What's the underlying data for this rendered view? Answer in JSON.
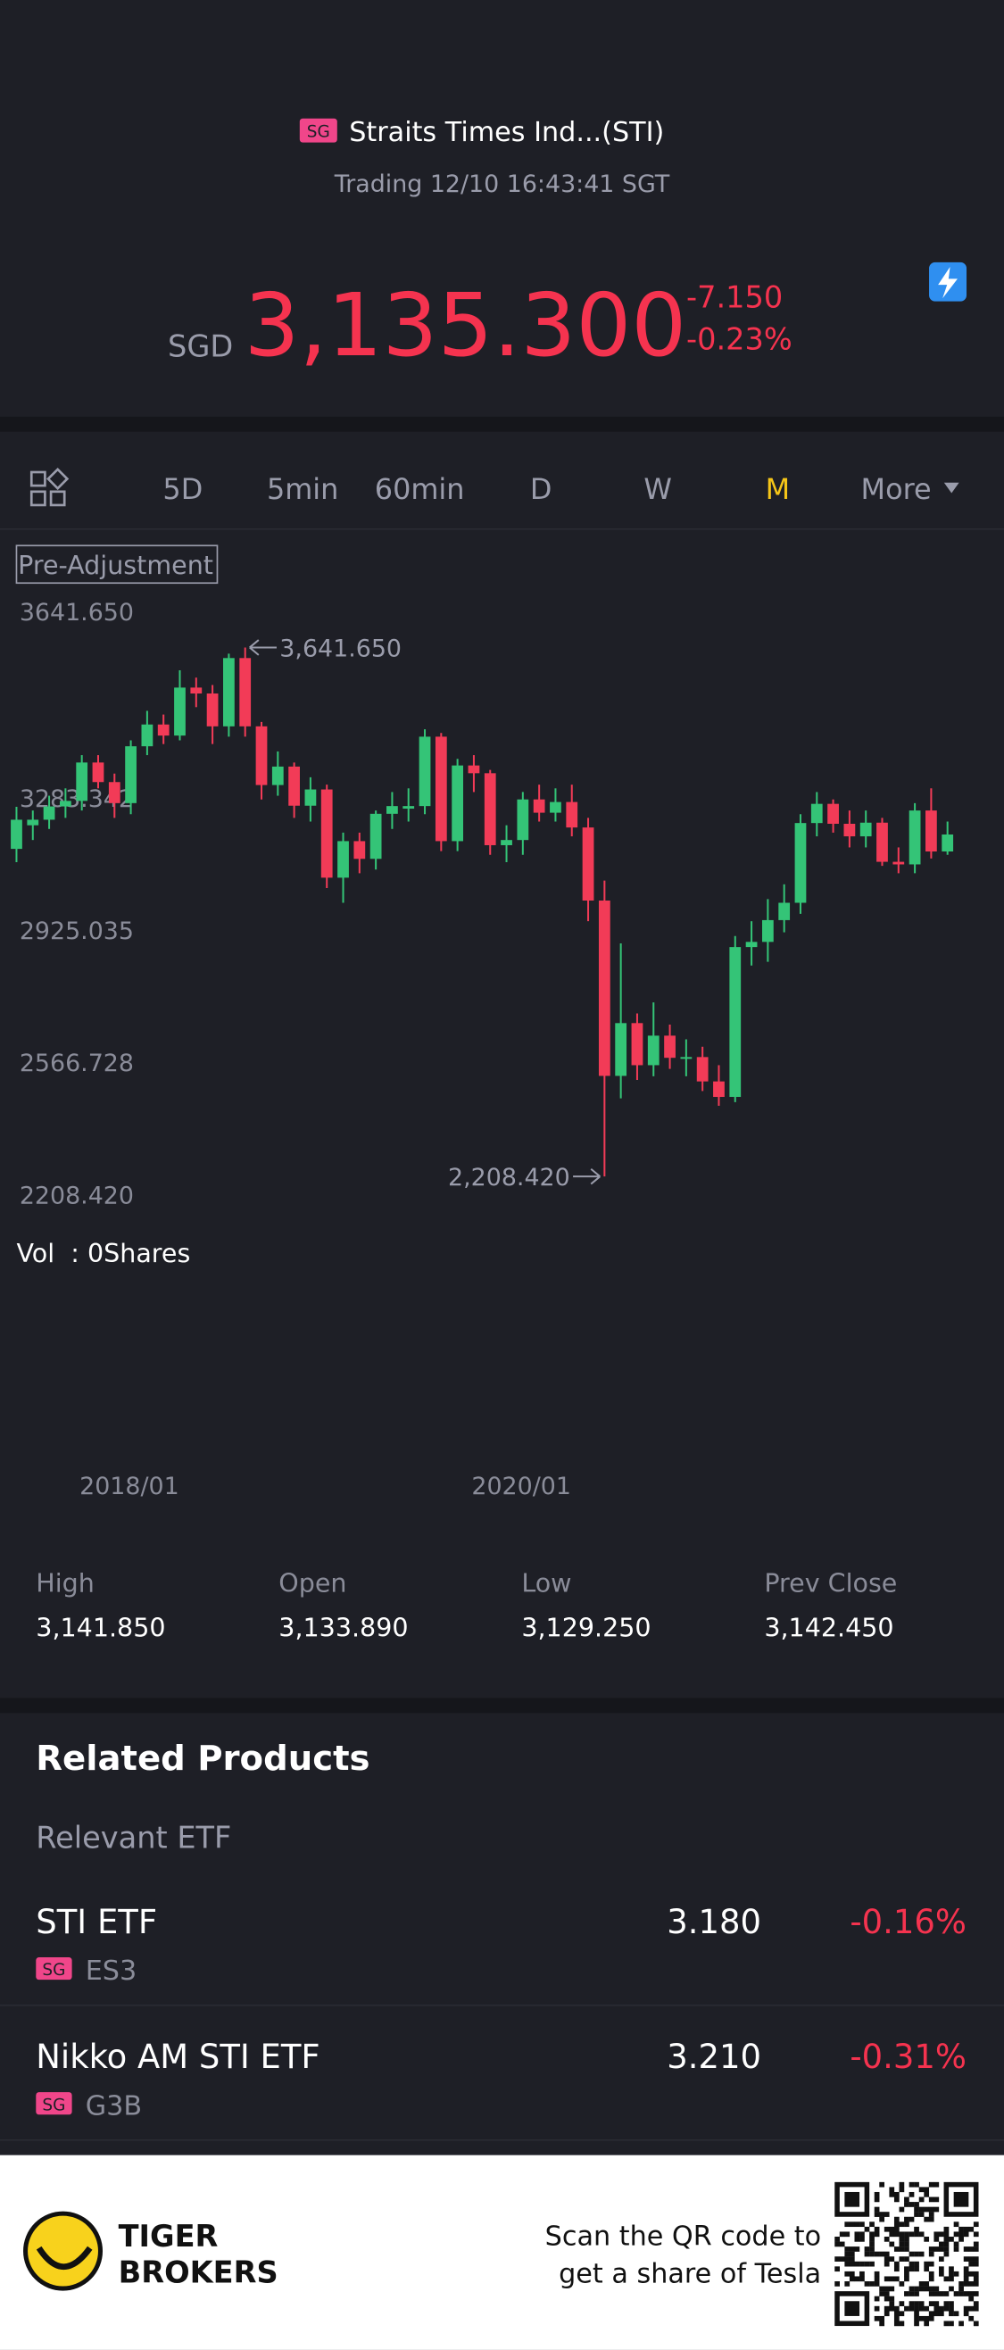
{
  "header": {
    "badge": "SG",
    "name": "Straits Times Ind...(STI)",
    "status": "Trading 12/10 16:43:41 SGT",
    "currency": "SGD",
    "price": "3,135.300",
    "change": "-7.150",
    "change_pct": "-0.23%"
  },
  "toolbar": {
    "tabs": [
      "5D",
      "5min",
      "60min",
      "D",
      "W",
      "M",
      "More"
    ],
    "active": "M"
  },
  "pre_adjustment": "Pre-Adjustment",
  "volume": "Vol  : 0Shares",
  "chart_data": {
    "type": "candlestick",
    "categories": [
      null,
      null,
      null,
      null,
      null,
      null,
      null,
      "2018/01",
      null,
      null,
      null,
      null,
      null,
      null,
      null,
      null,
      null,
      null,
      null,
      null,
      null,
      null,
      null,
      null,
      null,
      null,
      null,
      null,
      null,
      null,
      null,
      "2020/01",
      null,
      null,
      null,
      null,
      null,
      null,
      null,
      null,
      null,
      null,
      null,
      null,
      null,
      null,
      null,
      null,
      null,
      null,
      null,
      null,
      null,
      null,
      null,
      null,
      null,
      null
    ],
    "open": [
      3096,
      3160,
      3175,
      3211,
      3226,
      3330,
      3277,
      3220,
      3374,
      3433,
      3403,
      3533,
      3517,
      3428,
      3613,
      3428,
      3269,
      3319,
      3213,
      3257,
      3018,
      3117,
      3069,
      3191,
      3205,
      3212,
      3400,
      3117,
      3322,
      3301,
      3106,
      3120,
      3230,
      3194,
      3223,
      3154,
      2956,
      2481,
      2624,
      2510,
      2590,
      2530,
      2532,
      2466,
      2424,
      2830,
      2844,
      2903,
      2950,
      3166,
      3218,
      3164,
      3130,
      3167,
      3061,
      3054,
      3200,
      3089
    ],
    "high": [
      3210,
      3200,
      3240,
      3260,
      3350,
      3350,
      3300,
      3390,
      3470,
      3460,
      3580,
      3560,
      3540,
      3625,
      3641.65,
      3440,
      3360,
      3330,
      3290,
      3270,
      3140,
      3140,
      3200,
      3250,
      3260,
      3420,
      3410,
      3340,
      3350,
      3310,
      3160,
      3250,
      3270,
      3260,
      3270,
      3180,
      3010,
      2840,
      2650,
      2680,
      2620,
      2580,
      2560,
      2510,
      2860,
      2900,
      2960,
      3000,
      3190,
      3250,
      3230,
      3200,
      3200,
      3180,
      3100,
      3220,
      3260,
      3170
    ],
    "low": [
      3060,
      3120,
      3150,
      3180,
      3200,
      3260,
      3180,
      3190,
      3350,
      3380,
      3390,
      3480,
      3380,
      3400,
      3400,
      3230,
      3240,
      3180,
      3170,
      2990,
      2950,
      3030,
      3040,
      3150,
      3170,
      3190,
      3090,
      3090,
      3250,
      3080,
      3060,
      3080,
      3170,
      3170,
      3130,
      2900,
      2208.42,
      2420,
      2470,
      2480,
      2500,
      2480,
      2440,
      2400,
      2410,
      2780,
      2790,
      2870,
      2920,
      3130,
      3140,
      3100,
      3100,
      3050,
      3030,
      3030,
      3070,
      3080
    ],
    "close": [
      3175,
      3175,
      3211,
      3226,
      3330,
      3277,
      3220,
      3374,
      3433,
      3403,
      3533,
      3517,
      3428,
      3613,
      3428,
      3269,
      3319,
      3213,
      3257,
      3018,
      3117,
      3069,
      3191,
      3212,
      3212,
      3400,
      3117,
      3322,
      3301,
      3106,
      3120,
      3230,
      3194,
      3223,
      3154,
      2956,
      2481,
      2624,
      2510,
      2590,
      2530,
      2532,
      2466,
      2424,
      2830,
      2844,
      2903,
      2950,
      3166,
      3218,
      3164,
      3130,
      3167,
      3061,
      3054,
      3200,
      3089,
      3135
    ],
    "up_color": "#34c477",
    "down_color": "#f23b57",
    "ylim": [
      2208.42,
      3641.65
    ],
    "yticks": [
      {
        "value": 3641.65,
        "label": "3641.650"
      },
      {
        "value": 3283.342,
        "label": "3283.342"
      },
      {
        "value": 2925.035,
        "label": "2925.035"
      },
      {
        "value": 2566.728,
        "label": "2566.728"
      },
      {
        "value": 2208.42,
        "label": "2208.420"
      }
    ],
    "max_label": "3,641.650",
    "min_label": "2,208.420"
  },
  "stats": [
    {
      "label": "High",
      "value": "3,141.850"
    },
    {
      "label": "Open",
      "value": "3,133.890"
    },
    {
      "label": "Low",
      "value": "3,129.250"
    },
    {
      "label": "Prev Close",
      "value": "3,142.450"
    }
  ],
  "related": {
    "title": "Related Products",
    "subtitle": "Relevant ETF",
    "items": [
      {
        "name": "STI ETF",
        "badge": "SG",
        "code": "ES3",
        "price": "3.180",
        "change": "-0.16%"
      },
      {
        "name": "Nikko AM STI ETF",
        "badge": "SG",
        "code": "G3B",
        "price": "3.210",
        "change": "-0.31%"
      }
    ]
  },
  "footer": {
    "brand": [
      "TIGER",
      "BROKERS"
    ],
    "promo": [
      "Scan the QR code to",
      "get a share of Tesla"
    ]
  }
}
